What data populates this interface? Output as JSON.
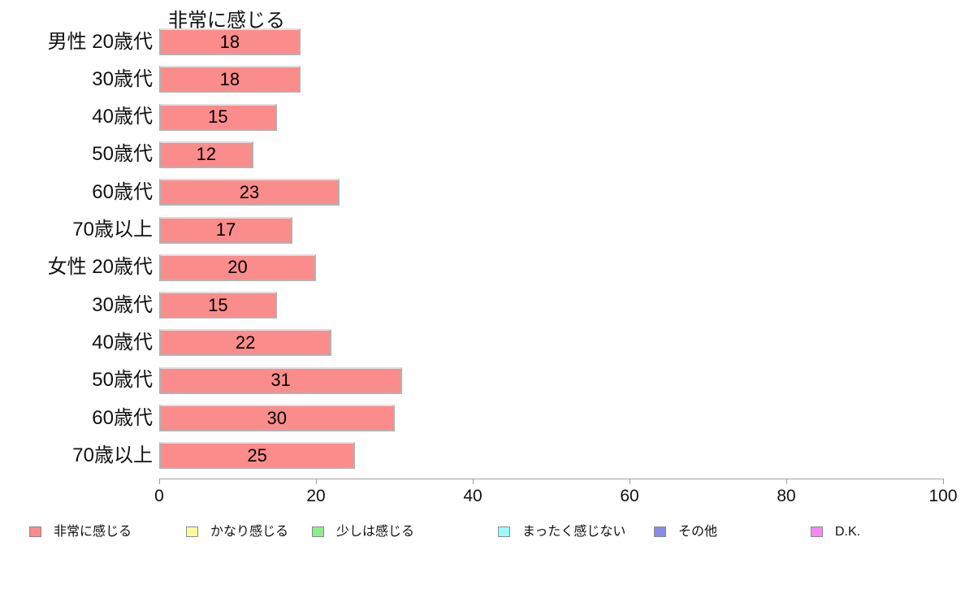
{
  "chart_data": {
    "type": "bar",
    "orientation": "horizontal",
    "title": "非常に感じる",
    "categories": [
      "男性 20歳代",
      "30歳代",
      "40歳代",
      "50歳代",
      "60歳代",
      "70歳以上",
      "女性 20歳代",
      "30歳代",
      "40歳代",
      "50歳代",
      "60歳代",
      "70歳以上"
    ],
    "values": [
      18,
      18,
      15,
      12,
      23,
      17,
      20,
      15,
      22,
      31,
      30,
      25
    ],
    "xlim": [
      0,
      100
    ],
    "x_ticks": [
      0,
      20,
      40,
      60,
      80,
      100
    ],
    "grid": false,
    "bar_color": "#FB8C8C",
    "bar_border_color": "#b2b2b2",
    "axis_color": "#a0a0a0",
    "legend_position": "bottom",
    "legend": [
      {
        "label": "非常に感じる",
        "color": "#FB8C8C"
      },
      {
        "label": "かなり感じる",
        "color": "#FCFC9C"
      },
      {
        "label": "少しは感じる",
        "color": "#8DED8D"
      },
      {
        "label": "まったく感じない",
        "color": "#9CFCFC"
      },
      {
        "label": "その他",
        "color": "#8A8AE8"
      },
      {
        "label": "D.K.",
        "color": "#FB84FB"
      }
    ]
  }
}
